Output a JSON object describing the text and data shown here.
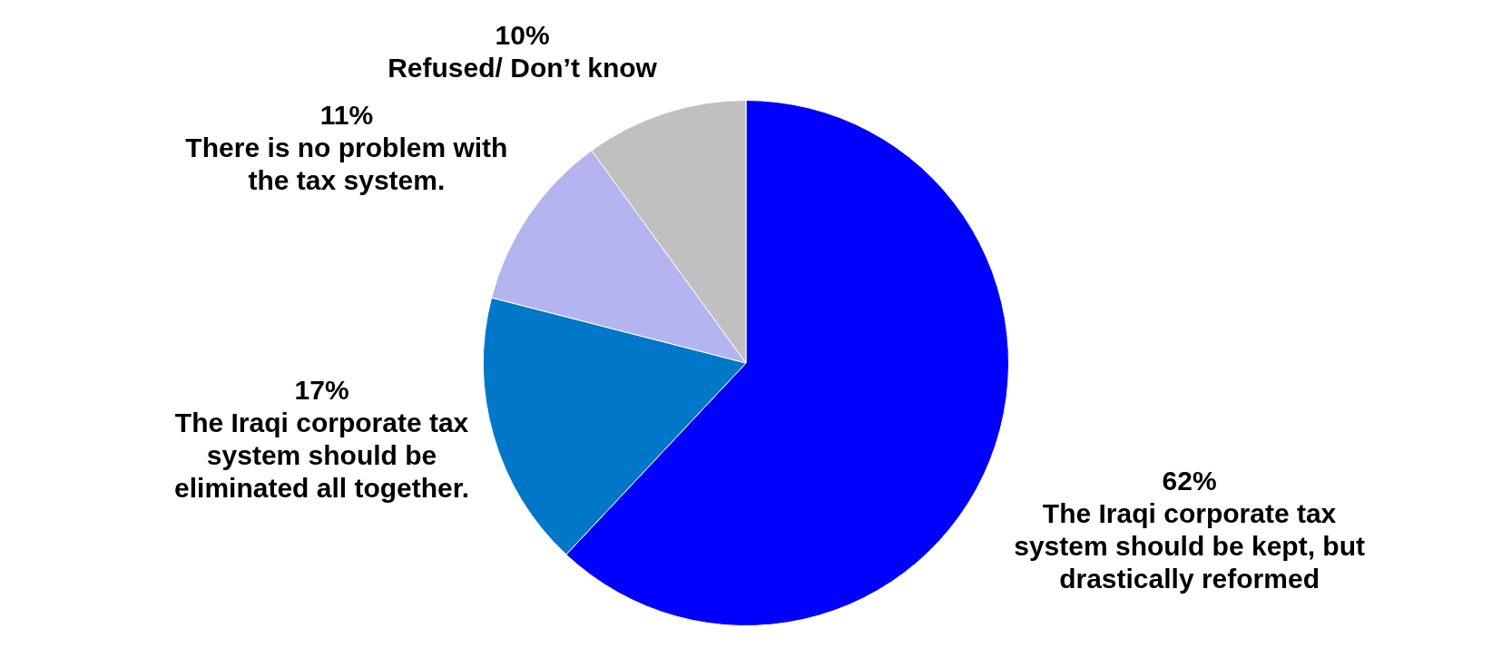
{
  "chart_data": {
    "type": "pie",
    "categories": [
      "The Iraqi corporate tax system should be kept, but drastically reformed",
      "The Iraqi corporate tax system should be eliminated all together.",
      "There is no problem with the tax system.",
      "Refused/ Don’t know"
    ],
    "values": [
      62,
      17,
      11,
      10
    ],
    "value_labels": [
      "62%",
      "17%",
      "11%",
      "10%"
    ],
    "colors": [
      "#0000ff",
      "#0077c8",
      "#b4b4f0",
      "#c0c0c0"
    ],
    "legend": false
  }
}
